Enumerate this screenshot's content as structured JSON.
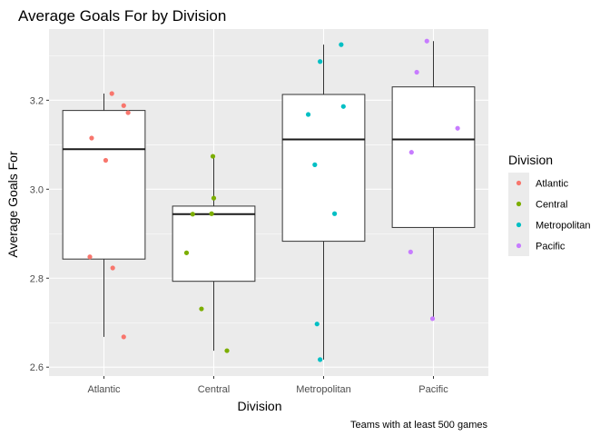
{
  "chart_data": {
    "type": "boxplot",
    "title": "Average Goals For by Division",
    "xlabel": "Division",
    "ylabel": "Average Goals For",
    "caption": "Teams with at least 500 games",
    "categories": [
      "Atlantic",
      "Central",
      "Metropolitan",
      "Pacific"
    ],
    "ylim": [
      2.58,
      3.36
    ],
    "yticks": [
      2.6,
      2.8,
      3.0,
      3.2
    ],
    "ytick_labels": [
      "2.6",
      "2.8",
      "3.0",
      "3.2"
    ],
    "grid": true,
    "legend": {
      "title": "Division",
      "position": "right",
      "entries": [
        "Atlantic",
        "Central",
        "Metropolitan",
        "Pacific"
      ]
    },
    "colors": {
      "Atlantic": "#F8766D",
      "Central": "#7CAE00",
      "Metropolitan": "#00BFC4",
      "Pacific": "#C77CFF",
      "panel": "#EBEBEB",
      "grid": "#FFFFFF"
    },
    "boxes": [
      {
        "division": "Atlantic",
        "whisker_low": 2.668,
        "q1": 2.843,
        "median": 3.09,
        "q3": 3.177,
        "whisker_high": 3.215
      },
      {
        "division": "Central",
        "whisker_low": 2.637,
        "q1": 2.793,
        "median": 2.944,
        "q3": 2.962,
        "whisker_high": 3.074
      },
      {
        "division": "Metropolitan",
        "whisker_low": 2.617,
        "q1": 2.883,
        "median": 3.112,
        "q3": 3.213,
        "whisker_high": 3.325
      },
      {
        "division": "Pacific",
        "whisker_low": 2.709,
        "q1": 2.914,
        "median": 3.112,
        "q3": 3.23,
        "whisker_high": 3.333
      }
    ],
    "points": [
      {
        "division": "Atlantic",
        "jitter": 0.18,
        "y": 3.215
      },
      {
        "division": "Atlantic",
        "jitter": -0.28,
        "y": 3.115
      },
      {
        "division": "Atlantic",
        "jitter": 0.04,
        "y": 3.065
      },
      {
        "division": "Atlantic",
        "jitter": 0.45,
        "y": 3.188
      },
      {
        "division": "Atlantic",
        "jitter": 0.55,
        "y": 3.172
      },
      {
        "division": "Atlantic",
        "jitter": -0.32,
        "y": 2.848
      },
      {
        "division": "Atlantic",
        "jitter": 0.2,
        "y": 2.823
      },
      {
        "division": "Atlantic",
        "jitter": 0.45,
        "y": 2.668
      },
      {
        "division": "Central",
        "jitter": -0.02,
        "y": 3.074
      },
      {
        "division": "Central",
        "jitter": 0.0,
        "y": 2.98
      },
      {
        "division": "Central",
        "jitter": -0.48,
        "y": 2.944
      },
      {
        "division": "Central",
        "jitter": -0.05,
        "y": 2.945
      },
      {
        "division": "Central",
        "jitter": -0.62,
        "y": 2.857
      },
      {
        "division": "Central",
        "jitter": -0.28,
        "y": 2.731
      },
      {
        "division": "Central",
        "jitter": 0.3,
        "y": 2.637
      },
      {
        "division": "Metropolitan",
        "jitter": 0.4,
        "y": 3.325
      },
      {
        "division": "Metropolitan",
        "jitter": -0.08,
        "y": 3.287
      },
      {
        "division": "Metropolitan",
        "jitter": -0.35,
        "y": 3.168
      },
      {
        "division": "Metropolitan",
        "jitter": 0.45,
        "y": 3.186
      },
      {
        "division": "Metropolitan",
        "jitter": -0.2,
        "y": 3.055
      },
      {
        "division": "Metropolitan",
        "jitter": 0.25,
        "y": 2.945
      },
      {
        "division": "Metropolitan",
        "jitter": -0.15,
        "y": 2.697
      },
      {
        "division": "Metropolitan",
        "jitter": -0.08,
        "y": 2.617
      },
      {
        "division": "Pacific",
        "jitter": -0.15,
        "y": 3.333
      },
      {
        "division": "Pacific",
        "jitter": -0.38,
        "y": 3.263
      },
      {
        "division": "Pacific",
        "jitter": 0.55,
        "y": 3.137
      },
      {
        "division": "Pacific",
        "jitter": -0.5,
        "y": 3.083
      },
      {
        "division": "Pacific",
        "jitter": -0.52,
        "y": 2.859
      },
      {
        "division": "Pacific",
        "jitter": -0.02,
        "y": 2.709
      }
    ]
  }
}
